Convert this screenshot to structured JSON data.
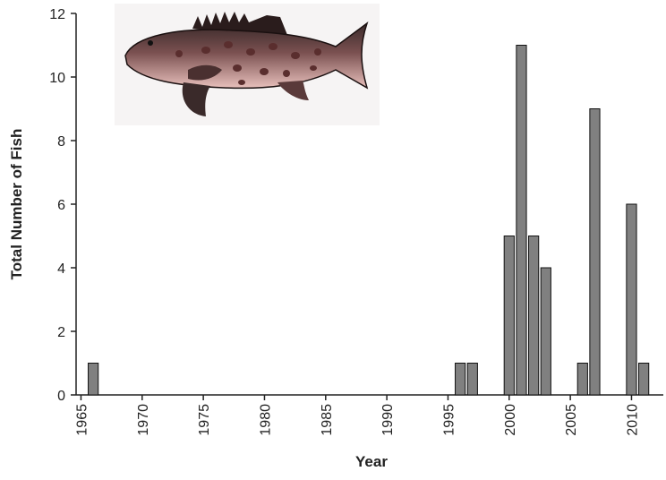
{
  "chart_data": {
    "type": "bar",
    "x_label": "Year",
    "y_label": "Total Number of Fish",
    "x": [
      1966,
      1996,
      1997,
      2000,
      2001,
      2002,
      2003,
      2006,
      2007,
      2010,
      2011
    ],
    "values": [
      1,
      1,
      1,
      5,
      11,
      5,
      4,
      1,
      9,
      6,
      1
    ],
    "color": "#808080",
    "xlim": [
      1964.6,
      2012.6
    ],
    "xticks": [
      1965,
      1970,
      1975,
      1980,
      1985,
      1990,
      1995,
      2000,
      2005,
      2010
    ],
    "ylim": [
      0,
      12
    ],
    "yticks": [
      0,
      2,
      4,
      6,
      8,
      10,
      12
    ],
    "grid": false
  }
}
